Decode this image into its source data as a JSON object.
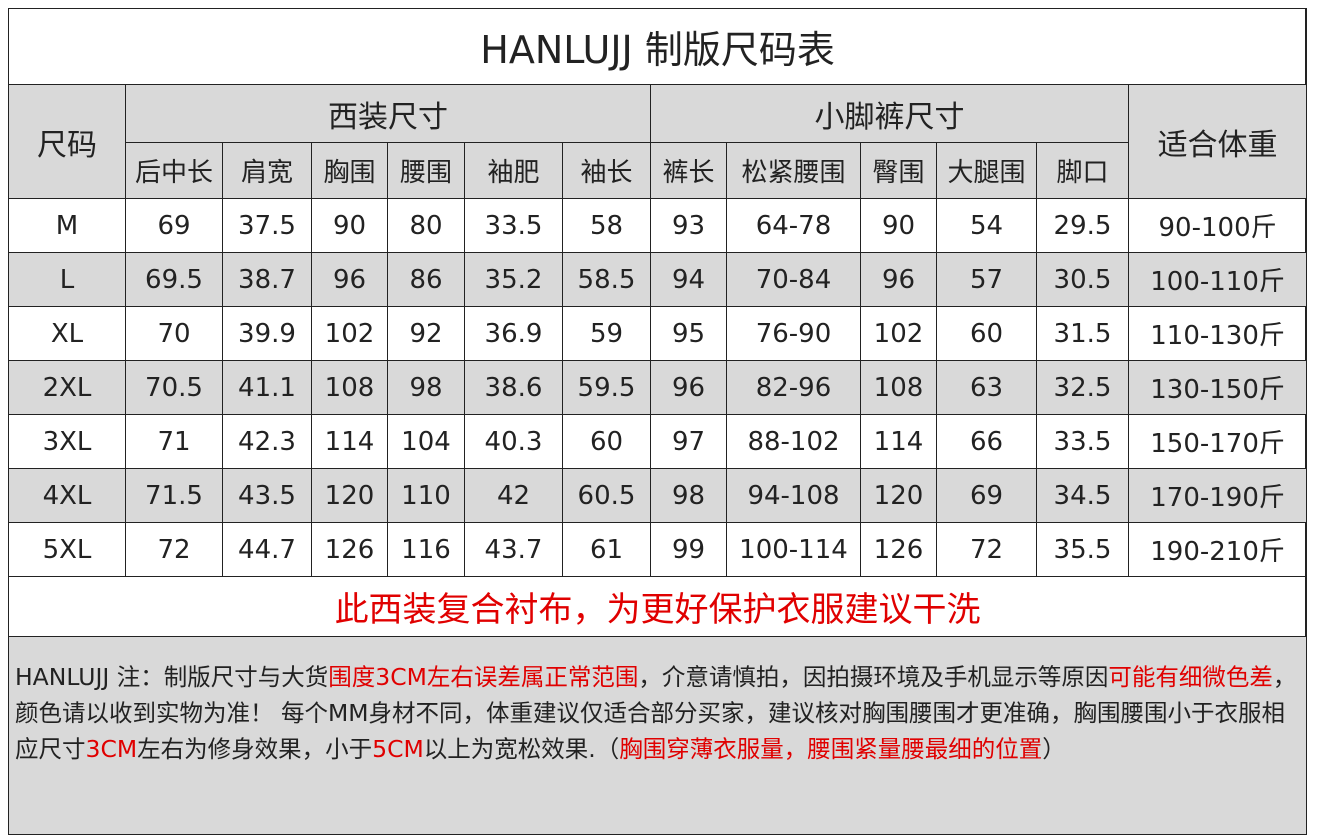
{
  "title": "HANLUJJ 制版尺码表",
  "header": {
    "size": "尺码",
    "suit": "西装尺寸",
    "pants": "小脚裤尺寸",
    "weight": "适合体重",
    "columns": [
      "后中长",
      "肩宽",
      "胸围",
      "腰围",
      "袖肥",
      "袖长",
      "裤长",
      "松紧腰围",
      "臀围",
      "大腿围",
      "脚口"
    ]
  },
  "table": {
    "rows": [
      [
        "M",
        "69",
        "37.5",
        "90",
        "80",
        "33.5",
        "58",
        "93",
        "64-78",
        "90",
        "54",
        "29.5",
        "90-100斤"
      ],
      [
        "L",
        "69.5",
        "38.7",
        "96",
        "86",
        "35.2",
        "58.5",
        "94",
        "70-84",
        "96",
        "57",
        "30.5",
        "100-110斤"
      ],
      [
        "XL",
        "70",
        "39.9",
        "102",
        "92",
        "36.9",
        "59",
        "95",
        "76-90",
        "102",
        "60",
        "31.5",
        "110-130斤"
      ],
      [
        "2XL",
        "70.5",
        "41.1",
        "108",
        "98",
        "38.6",
        "59.5",
        "96",
        "82-96",
        "108",
        "63",
        "32.5",
        "130-150斤"
      ],
      [
        "3XL",
        "71",
        "42.3",
        "114",
        "104",
        "40.3",
        "60",
        "97",
        "88-102",
        "114",
        "66",
        "33.5",
        "150-170斤"
      ],
      [
        "4XL",
        "71.5",
        "43.5",
        "120",
        "110",
        "42",
        "60.5",
        "98",
        "94-108",
        "120",
        "69",
        "34.5",
        "170-190斤"
      ],
      [
        "5XL",
        "72",
        "44.7",
        "126",
        "116",
        "43.7",
        "61",
        "99",
        "100-114",
        "126",
        "72",
        "35.5",
        "190-210斤"
      ]
    ]
  },
  "care_note": {
    "text": "此西装复合衬布，为更好保护衣服建议干洗",
    "color": "#e00000"
  },
  "notes": {
    "segments": [
      {
        "text": "HANLUJJ 注：制版尺寸与大货",
        "color": "#222222"
      },
      {
        "text": "围度3CM左右误差属正常范围",
        "color": "#e00000"
      },
      {
        "text": "，介意请慎拍，因拍摄环境及手机显示等原因",
        "color": "#222222"
      },
      {
        "text": "可能有细微色差",
        "color": "#e00000"
      },
      {
        "text": "，颜色请以收到实物为准！ 每个MM身材不同，体重建议仅适合部分买家，建议核对胸围腰围才更准确，胸围腰围小于衣服相应尺寸",
        "color": "#222222"
      },
      {
        "text": "3CM",
        "color": "#e00000"
      },
      {
        "text": "左右为修身效果，小于",
        "color": "#222222"
      },
      {
        "text": "5CM",
        "color": "#e00000"
      },
      {
        "text": "以上为宽松效果.（",
        "color": "#222222"
      },
      {
        "text": "胸围穿薄衣服量，腰围紧量腰最细的位置",
        "color": "#e00000"
      },
      {
        "text": "）",
        "color": "#222222"
      }
    ]
  }
}
